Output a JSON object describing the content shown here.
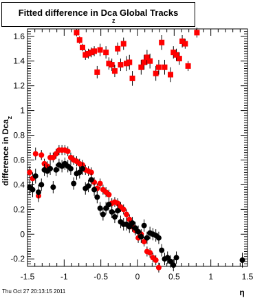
{
  "title": {
    "main": "Fitted difference in Dca  Global Tracks",
    "subscript": "z"
  },
  "timestamp": "Thu Oct 27 20:13:15 2011",
  "chart_data": {
    "type": "scatter",
    "xlabel": "η",
    "ylabel": "difference in Dca_z",
    "xlim": [
      -1.5,
      1.5
    ],
    "ylim": [
      -0.26,
      1.66
    ],
    "x_ticks": [
      "-1.5",
      "-1",
      "-0.5",
      "0",
      "0.5",
      "1",
      "1.5"
    ],
    "y_ticks": [
      "-0.2",
      "0",
      "0.2",
      "0.4",
      "0.6",
      "0.8",
      "1",
      "1.2",
      "1.4",
      "1.6"
    ],
    "grid": false,
    "series": [
      {
        "marker": "square",
        "color": "#ff0000",
        "x": [
          -0.83,
          -0.79,
          -0.75,
          -0.71,
          -0.67,
          -0.63,
          -0.59,
          -0.55,
          -0.51,
          -0.43,
          -0.39,
          -0.35,
          -0.31,
          -0.27,
          -0.23,
          -0.19,
          -0.15,
          -0.11,
          -0.07,
          0.05,
          0.09,
          0.13,
          0.17,
          0.25,
          0.29,
          0.33,
          0.37,
          0.45,
          0.49,
          0.53,
          0.57,
          0.61,
          0.65,
          0.69,
          0.81
        ],
        "y": [
          1.63,
          1.57,
          1.51,
          1.45,
          1.46,
          1.47,
          1.48,
          1.31,
          1.49,
          1.47,
          1.38,
          1.37,
          1.32,
          1.5,
          1.37,
          1.54,
          1.38,
          1.39,
          1.26,
          1.35,
          1.39,
          1.43,
          1.4,
          1.3,
          1.35,
          1.55,
          1.35,
          1.29,
          1.47,
          1.45,
          1.42,
          1.56,
          1.54,
          1.36,
          1.63
        ],
        "yerr": [
          0.03,
          0.03,
          0.03,
          0.04,
          0.04,
          0.04,
          0.04,
          0.05,
          0.05,
          0.05,
          0.05,
          0.05,
          0.05,
          0.05,
          0.05,
          0.05,
          0.06,
          0.06,
          0.06,
          0.06,
          0.06,
          0.06,
          0.06,
          0.06,
          0.06,
          0.06,
          0.06,
          0.06,
          0.05,
          0.05,
          0.05,
          0.05,
          0.04,
          0.04,
          0.04
        ]
      },
      {
        "marker": "circle",
        "color": "#ff0000",
        "x": [
          -1.47,
          -1.43,
          -1.39,
          -1.35,
          -1.31,
          -1.27,
          -1.23,
          -1.19,
          -1.15,
          -1.11,
          -1.07,
          -1.03,
          -0.99,
          -0.95,
          -0.91,
          -0.87,
          -0.83,
          -0.79,
          -0.75,
          -0.71,
          -0.67,
          -0.63,
          -0.59,
          -0.55,
          -0.51,
          -0.47,
          -0.43,
          -0.39,
          -0.35,
          -0.31,
          -0.27,
          -0.23,
          -0.19,
          -0.15,
          -0.11,
          -0.07,
          -0.03,
          0.01,
          0.05,
          0.09,
          0.13,
          0.17,
          0.21,
          0.25,
          0.29
        ],
        "y": [
          0.5,
          0.45,
          0.65,
          0.31,
          0.64,
          0.57,
          0.55,
          0.62,
          0.62,
          0.65,
          0.68,
          0.68,
          0.68,
          0.67,
          0.62,
          0.6,
          0.59,
          0.57,
          0.56,
          0.52,
          0.51,
          0.5,
          0.42,
          0.37,
          0.41,
          0.36,
          0.34,
          0.32,
          0.25,
          0.26,
          0.25,
          0.22,
          0.2,
          0.16,
          0.12,
          0.06,
          0.03,
          -0.03,
          0.0,
          -0.06,
          -0.14,
          -0.15,
          -0.19,
          -0.21,
          -0.27
        ],
        "yerr": [
          0.05,
          0.05,
          0.05,
          0.05,
          0.04,
          0.04,
          0.04,
          0.04,
          0.04,
          0.04,
          0.04,
          0.04,
          0.04,
          0.04,
          0.04,
          0.04,
          0.04,
          0.04,
          0.04,
          0.04,
          0.04,
          0.04,
          0.04,
          0.04,
          0.04,
          0.04,
          0.04,
          0.04,
          0.04,
          0.04,
          0.04,
          0.04,
          0.04,
          0.04,
          0.04,
          0.04,
          0.04,
          0.04,
          0.04,
          0.04,
          0.04,
          0.04,
          0.04,
          0.04,
          0.04
        ]
      },
      {
        "marker": "circle",
        "color": "#000000",
        "x": [
          -1.47,
          -1.43,
          -1.39,
          -1.35,
          -1.31,
          -1.27,
          -1.23,
          -1.19,
          -1.15,
          -1.11,
          -1.07,
          -1.03,
          -0.99,
          -0.95,
          -0.91,
          -0.87,
          -0.83,
          -0.79,
          -0.75,
          -0.71,
          -0.67,
          -0.63,
          -0.59,
          -0.55,
          -0.51,
          -0.47,
          -0.43,
          -0.39,
          -0.35,
          -0.31,
          -0.27,
          -0.23,
          -0.19,
          -0.15,
          -0.11,
          -0.07,
          -0.03,
          0.01,
          0.05,
          0.09,
          0.13,
          0.17,
          0.21,
          0.25,
          0.29,
          0.33,
          0.37,
          0.41,
          0.45,
          0.49,
          0.53,
          1.43
        ],
        "y": [
          0.38,
          0.36,
          0.47,
          0.34,
          0.4,
          0.52,
          0.51,
          0.53,
          0.38,
          0.52,
          0.56,
          0.55,
          0.57,
          0.55,
          0.53,
          0.41,
          0.49,
          0.5,
          0.53,
          0.37,
          0.39,
          0.44,
          0.36,
          0.3,
          0.21,
          0.16,
          0.21,
          0.24,
          0.18,
          0.14,
          0.19,
          0.1,
          0.08,
          0.08,
          0.06,
          0.09,
          0.05,
          0.02,
          -0.02,
          0.07,
          -0.03,
          0.01,
          0.0,
          -0.01,
          -0.03,
          -0.13,
          -0.2,
          -0.19,
          -0.22,
          -0.25,
          -0.19,
          -0.21
        ],
        "yerr": [
          0.06,
          0.06,
          0.06,
          0.06,
          0.05,
          0.05,
          0.05,
          0.05,
          0.05,
          0.05,
          0.05,
          0.05,
          0.05,
          0.05,
          0.05,
          0.05,
          0.05,
          0.05,
          0.05,
          0.05,
          0.05,
          0.05,
          0.05,
          0.05,
          0.05,
          0.05,
          0.05,
          0.05,
          0.05,
          0.05,
          0.05,
          0.05,
          0.05,
          0.05,
          0.05,
          0.05,
          0.05,
          0.05,
          0.05,
          0.05,
          0.05,
          0.05,
          0.05,
          0.05,
          0.05,
          0.05,
          0.05,
          0.05,
          0.05,
          0.05,
          0.05,
          0.06
        ]
      }
    ]
  }
}
